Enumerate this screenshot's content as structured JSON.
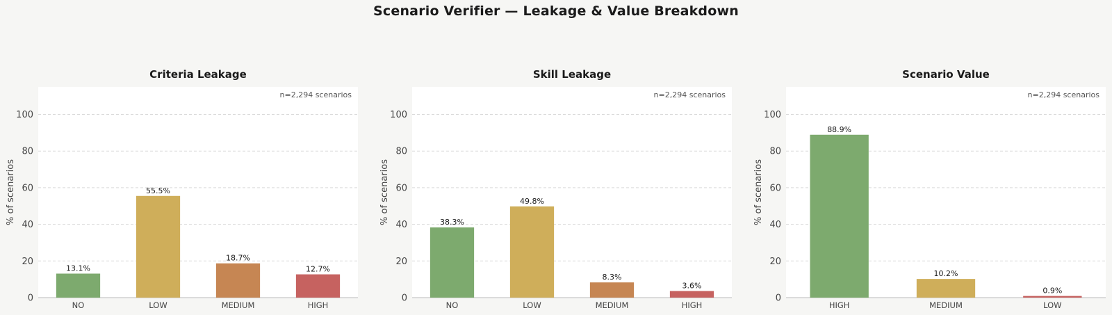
{
  "title": "Scenario Verifier — Leakage & Value Breakdown",
  "colors": {
    "NO": "#7daa6e",
    "LOW": "#cfae5a",
    "MEDIUM": "#c68653",
    "HIGH": "#c66260",
    "grid": "#d9d9d9",
    "plot_bg": "#ffffff"
  },
  "chart_data": [
    {
      "type": "bar",
      "title": "Criteria Leakage",
      "ylabel": "% of scenarios",
      "note": "n=2,294 scenarios",
      "ylim": [
        0,
        115
      ],
      "yticks": [
        0,
        20,
        40,
        60,
        80,
        100
      ],
      "grid": true,
      "categories": [
        "NO",
        "LOW",
        "MEDIUM",
        "HIGH"
      ],
      "values": [
        13.1,
        55.5,
        18.7,
        12.7
      ],
      "value_labels": [
        "13.1%",
        "55.5%",
        "18.7%",
        "12.7%"
      ],
      "bar_colors": [
        "NO",
        "LOW",
        "MEDIUM",
        "HIGH"
      ]
    },
    {
      "type": "bar",
      "title": "Skill Leakage",
      "ylabel": "% of scenarios",
      "note": "n=2,294 scenarios",
      "ylim": [
        0,
        115
      ],
      "yticks": [
        0,
        20,
        40,
        60,
        80,
        100
      ],
      "grid": true,
      "categories": [
        "NO",
        "LOW",
        "MEDIUM",
        "HIGH"
      ],
      "values": [
        38.3,
        49.8,
        8.3,
        3.6
      ],
      "value_labels": [
        "38.3%",
        "49.8%",
        "8.3%",
        "3.6%"
      ],
      "bar_colors": [
        "NO",
        "LOW",
        "MEDIUM",
        "HIGH"
      ]
    },
    {
      "type": "bar",
      "title": "Scenario Value",
      "ylabel": "% of scenarios",
      "note": "n=2,294 scenarios",
      "ylim": [
        0,
        115
      ],
      "yticks": [
        0,
        20,
        40,
        60,
        80,
        100
      ],
      "grid": true,
      "categories": [
        "HIGH",
        "MEDIUM",
        "LOW"
      ],
      "values": [
        88.9,
        10.2,
        0.9
      ],
      "value_labels": [
        "88.9%",
        "10.2%",
        "0.9%"
      ],
      "bar_colors": [
        "NO",
        "LOW",
        "HIGH"
      ]
    }
  ]
}
